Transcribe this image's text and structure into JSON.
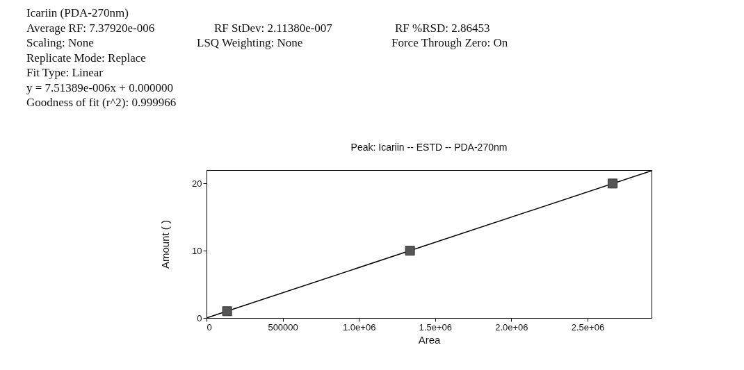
{
  "chart_data": {
    "type": "scatter",
    "title": "Peak: Icariin -- ESTD -- PDA-270nm",
    "xlabel": "Area",
    "ylabel": "Amount ( )",
    "annotations": [
      "Icariin (PDA-270nm)",
      "Average RF: 7.37920e-006",
      "RF StDev: 2.11380e-007",
      "RF %RSD: 2.86453",
      "Scaling: None",
      "LSQ Weighting: None",
      "Force Through Zero: On",
      "Replicate Mode: Replace",
      "Fit Type: Linear",
      "y = 7.51389e-006x + 0.000000",
      "Goodness of fit (r^2): 0.999966"
    ],
    "x": [
      135000,
      1335000,
      2665000
    ],
    "series": [
      {
        "marker": "square",
        "color": "#555555",
        "values": [
          1,
          10,
          20
        ]
      },
      {
        "type": "line",
        "color": "#000000",
        "x": [
          0,
          2920000
        ],
        "values": [
          0,
          21.9
        ]
      }
    ],
    "grid": false,
    "xlim": [
      0,
      2920000
    ],
    "ylim": [
      0,
      22
    ],
    "xticks": [
      0,
      500000,
      {
        "value": 1000000,
        "label": "1.0e+06"
      },
      {
        "value": 1500000,
        "label": "1.5e+06"
      },
      {
        "value": 2000000,
        "label": "2.0e+06"
      },
      {
        "value": 2500000,
        "label": "2.5e+06"
      }
    ],
    "yticks": [
      0,
      10,
      20
    ]
  }
}
